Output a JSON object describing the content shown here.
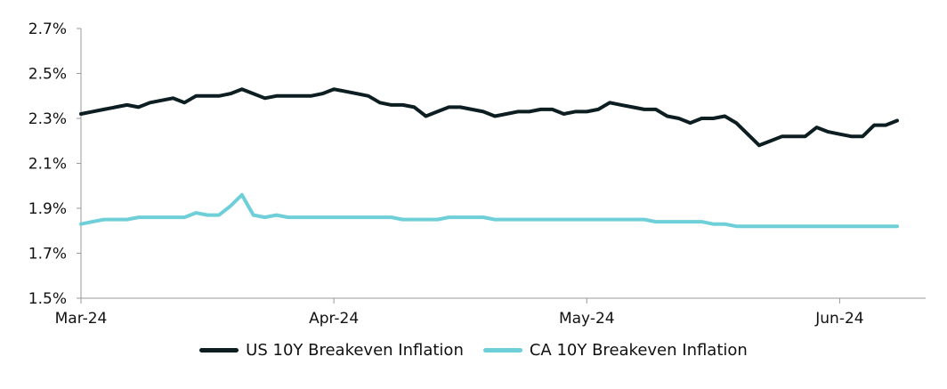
{
  "chart_data": {
    "type": "line",
    "ylim": [
      1.5,
      2.7
    ],
    "y_ticks": [
      "1.5%",
      "1.7%",
      "1.9%",
      "2.1%",
      "2.3%",
      "2.5%",
      "2.7%"
    ],
    "y_tick_values": [
      1.5,
      1.7,
      1.9,
      2.1,
      2.3,
      2.5,
      2.7
    ],
    "x_ticks": [
      "Mar-24",
      "Apr-24",
      "May-24",
      "Jun-24"
    ],
    "x_tick_index": [
      0,
      22,
      44,
      66
    ],
    "grid": false,
    "legend_position": "bottom",
    "series": [
      {
        "name": "US 10Y Breakeven Inflation",
        "color": "#0d1e22",
        "values": [
          2.32,
          2.33,
          2.34,
          2.35,
          2.36,
          2.35,
          2.37,
          2.38,
          2.39,
          2.37,
          2.4,
          2.4,
          2.4,
          2.41,
          2.43,
          2.41,
          2.39,
          2.4,
          2.4,
          2.4,
          2.4,
          2.41,
          2.43,
          2.42,
          2.41,
          2.4,
          2.37,
          2.36,
          2.36,
          2.35,
          2.31,
          2.33,
          2.35,
          2.35,
          2.34,
          2.33,
          2.31,
          2.32,
          2.33,
          2.33,
          2.34,
          2.34,
          2.32,
          2.33,
          2.33,
          2.34,
          2.37,
          2.36,
          2.35,
          2.34,
          2.34,
          2.31,
          2.3,
          2.28,
          2.3,
          2.3,
          2.31,
          2.28,
          2.23,
          2.18,
          2.2,
          2.22,
          2.22,
          2.22,
          2.26,
          2.24,
          2.23,
          2.22,
          2.22,
          2.27,
          2.27,
          2.29
        ]
      },
      {
        "name": "CA 10Y Breakeven Inflation",
        "color": "#6fcfd8",
        "values": [
          1.83,
          1.84,
          1.85,
          1.85,
          1.85,
          1.86,
          1.86,
          1.86,
          1.86,
          1.86,
          1.88,
          1.87,
          1.87,
          1.91,
          1.96,
          1.87,
          1.86,
          1.87,
          1.86,
          1.86,
          1.86,
          1.86,
          1.86,
          1.86,
          1.86,
          1.86,
          1.86,
          1.86,
          1.85,
          1.85,
          1.85,
          1.85,
          1.86,
          1.86,
          1.86,
          1.86,
          1.85,
          1.85,
          1.85,
          1.85,
          1.85,
          1.85,
          1.85,
          1.85,
          1.85,
          1.85,
          1.85,
          1.85,
          1.85,
          1.85,
          1.84,
          1.84,
          1.84,
          1.84,
          1.84,
          1.83,
          1.83,
          1.82,
          1.82,
          1.82,
          1.82,
          1.82,
          1.82,
          1.82,
          1.82,
          1.82,
          1.82,
          1.82,
          1.82,
          1.82,
          1.82,
          1.82
        ]
      }
    ]
  }
}
